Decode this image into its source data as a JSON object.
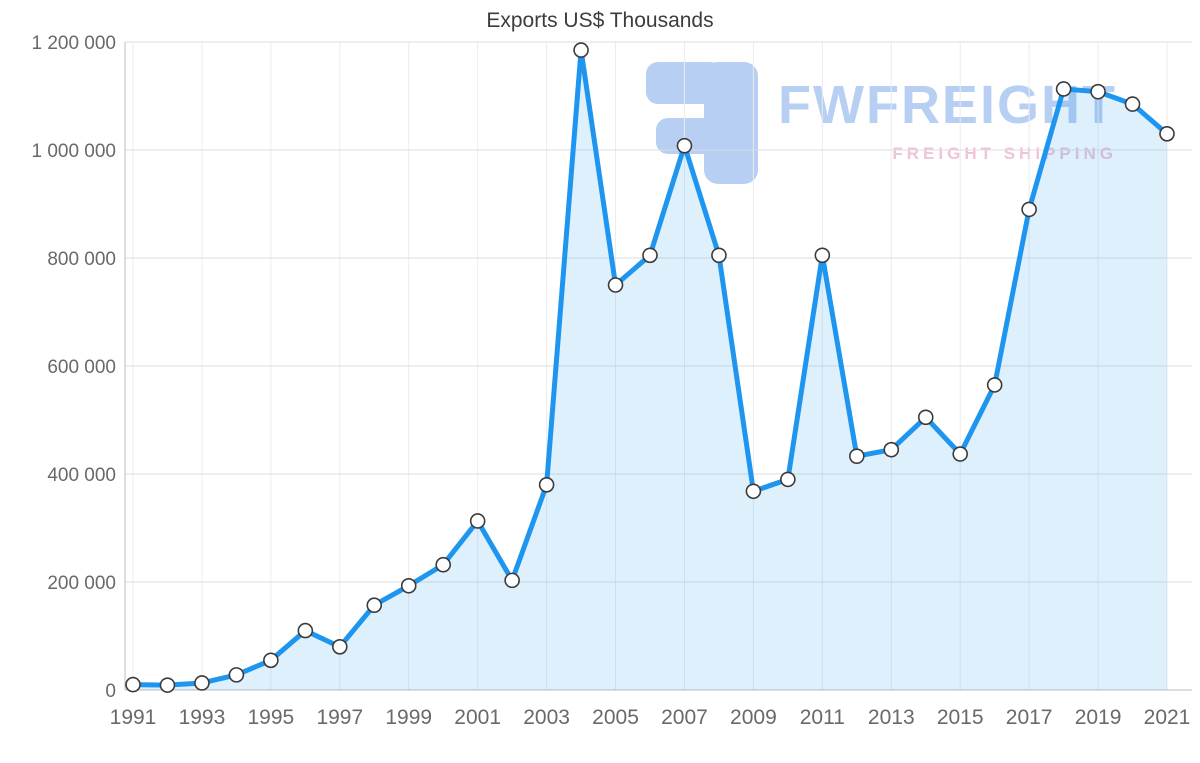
{
  "watermark": {
    "brand": "FWFREIGHT",
    "tagline": "FREIGHT SHIPPING",
    "brand_color": "#b7cff2",
    "tagline_color": "#efc3dc",
    "logo_color": "#b7cff2"
  },
  "chart_data": {
    "type": "line",
    "title": "Exports US$ Thousands",
    "xlabel": "",
    "ylabel": "",
    "x": [
      1991,
      1992,
      1993,
      1994,
      1995,
      1996,
      1997,
      1998,
      1999,
      2000,
      2001,
      2002,
      2003,
      2004,
      2005,
      2006,
      2007,
      2008,
      2009,
      2010,
      2011,
      2012,
      2013,
      2014,
      2015,
      2016,
      2017,
      2018,
      2019,
      2020,
      2021
    ],
    "values": [
      10000,
      9000,
      13000,
      28000,
      55000,
      110000,
      80000,
      157000,
      193000,
      232000,
      313000,
      203000,
      380000,
      1185000,
      750000,
      805000,
      1008000,
      805000,
      368000,
      390000,
      805000,
      433000,
      445000,
      505000,
      437000,
      565000,
      890000,
      1113000,
      1108000,
      1085000,
      1030000
    ],
    "ylim": [
      0,
      1200000
    ],
    "grid": true,
    "area_fill": true,
    "markers": true,
    "y_ticks": [
      {
        "value": 0,
        "label": "0"
      },
      {
        "value": 200000,
        "label": "200 000"
      },
      {
        "value": 400000,
        "label": "400 000"
      },
      {
        "value": 600000,
        "label": "600 000"
      },
      {
        "value": 800000,
        "label": "800 000"
      },
      {
        "value": 1000000,
        "label": "1 000 000"
      },
      {
        "value": 1200000,
        "label": "1 200 000"
      }
    ],
    "x_ticks": [
      {
        "value": 1991,
        "label": "1991"
      },
      {
        "value": 1993,
        "label": "1993"
      },
      {
        "value": 1995,
        "label": "1995"
      },
      {
        "value": 1997,
        "label": "1997"
      },
      {
        "value": 1999,
        "label": "1999"
      },
      {
        "value": 2001,
        "label": "2001"
      },
      {
        "value": 2003,
        "label": "2003"
      },
      {
        "value": 2005,
        "label": "2005"
      },
      {
        "value": 2007,
        "label": "2007"
      },
      {
        "value": 2009,
        "label": "2009"
      },
      {
        "value": 2011,
        "label": "2011"
      },
      {
        "value": 2013,
        "label": "2013"
      },
      {
        "value": 2015,
        "label": "2015"
      },
      {
        "value": 2017,
        "label": "2017"
      },
      {
        "value": 2019,
        "label": "2019"
      },
      {
        "value": 2021,
        "label": "2021"
      }
    ],
    "colors": {
      "line": "#1e96f0",
      "fill_opacity": "0.14",
      "marker_fill": "#ffffff",
      "marker_stroke": "#3b3b3b",
      "grid_h": "#dedede",
      "grid_v": "#ebebeb",
      "axis": "#bdbdbd",
      "tick_label": "#696969",
      "title": "#3d3d3d"
    }
  }
}
